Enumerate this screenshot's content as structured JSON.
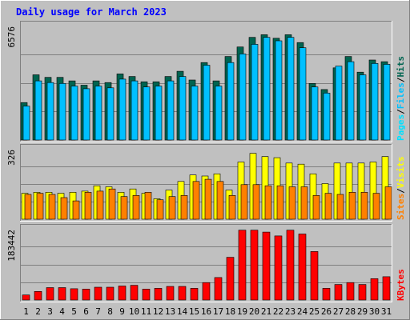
{
  "colors": {
    "background": "#c0c0c0",
    "title": "#0000ff",
    "hits": "#006450",
    "files": "#00c0ff",
    "pages": "#00e0ff",
    "visits": "#ffff00",
    "sites": "#ff8000",
    "kbytes": "#ff0000",
    "weekend_label": "#00805c"
  },
  "chart_data": {
    "type": "bar",
    "title": "Daily usage for March 2023",
    "categories": [
      "1",
      "2",
      "3",
      "4",
      "5",
      "6",
      "7",
      "8",
      "9",
      "10",
      "11",
      "12",
      "13",
      "14",
      "15",
      "16",
      "17",
      "18",
      "19",
      "20",
      "21",
      "22",
      "23",
      "24",
      "25",
      "26",
      "27",
      "28",
      "29",
      "30",
      "31"
    ],
    "weekend_days": [
      "4",
      "5",
      "11",
      "12",
      "18",
      "19",
      "25",
      "26"
    ],
    "panels": [
      {
        "name": "hits-files-pages",
        "ymax_label": "6576",
        "ylim": [
          0,
          6576
        ],
        "legend": [
          "Pages",
          "Files",
          "Hits"
        ],
        "series": [
          {
            "name": "Hits",
            "values": [
              2150,
              3750,
              3600,
              3600,
              3400,
              3150,
              3400,
              3300,
              3800,
              3650,
              3350,
              3350,
              3650,
              3950,
              3450,
              4450,
              3400,
              4800,
              5350,
              5900,
              6050,
              5850,
              6050,
              5600,
              3250,
              2900,
              4150,
              4800,
              3900,
              4600,
              4500
            ]
          },
          {
            "name": "Files",
            "values": [
              1950,
              3400,
              3300,
              3250,
              3100,
              2950,
              3100,
              3000,
              3500,
              3400,
              3050,
              3100,
              3400,
              3650,
              3100,
              4300,
              3100,
              4450,
              4950,
              5500,
              5900,
              5700,
              5900,
              5300,
              3050,
              2700,
              4250,
              4500,
              3750,
              4400,
              4350
            ]
          },
          {
            "name": "Pages",
            "values": [
              1950,
              3400,
              3300,
              3250,
              3100,
              2950,
              3100,
              3000,
              3500,
              3400,
              3050,
              3100,
              3400,
              3650,
              3100,
              4300,
              3100,
              4450,
              4950,
              5500,
              5900,
              5700,
              5900,
              5300,
              3050,
              2700,
              4250,
              4500,
              3750,
              4400,
              4350
            ]
          }
        ]
      },
      {
        "name": "visits-sites",
        "ymax_label": "326",
        "ylim": [
          0,
          326
        ],
        "legend": [
          "Sites",
          "Visits"
        ],
        "series": [
          {
            "name": "Visits",
            "values": [
              120,
              125,
              125,
              120,
              125,
              130,
              155,
              150,
              125,
              140,
              120,
              95,
              135,
              175,
              205,
              200,
              210,
              135,
              265,
              305,
              290,
              285,
              260,
              255,
              210,
              165,
              260,
              260,
              260,
              265,
              290
            ]
          },
          {
            "name": "Sites",
            "values": [
              115,
              120,
              115,
              100,
              85,
              125,
              130,
              140,
              105,
              110,
              125,
              90,
              105,
              110,
              175,
              185,
              175,
              110,
              160,
              160,
              155,
              155,
              150,
              150,
              110,
              120,
              115,
              125,
              125,
              120,
              150
            ]
          }
        ]
      },
      {
        "name": "kbytes",
        "ymax_label": "183442",
        "ylim": [
          0,
          183442
        ],
        "legend": [
          "KBytes"
        ],
        "series": [
          {
            "name": "KBytes",
            "values": [
              13000,
              22000,
              32000,
              32000,
              29000,
              28000,
              33000,
              33000,
              36000,
              38000,
              28000,
              30000,
              35000,
              35000,
              30000,
              45000,
              58000,
              110000,
              180000,
              180000,
              175000,
              165000,
              180000,
              170000,
              125000,
              30000,
              40000,
              45000,
              40000,
              55000,
              60000
            ]
          }
        ]
      }
    ]
  }
}
